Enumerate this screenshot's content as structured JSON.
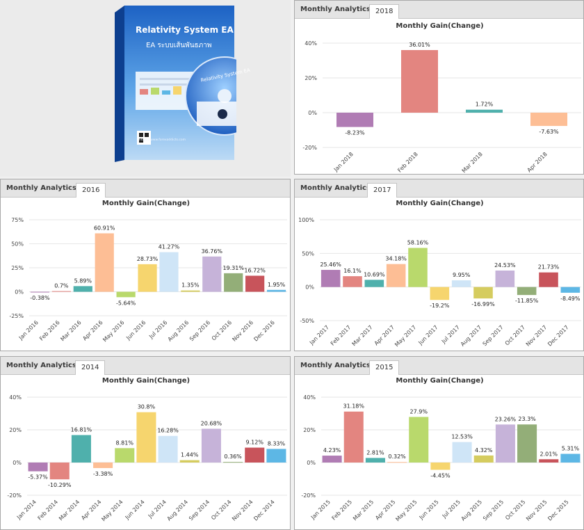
{
  "product": {
    "title": "Relativity System EA",
    "subtitle": "EA ระบบเส้นพันธภาพ",
    "disc_title": "Relativity System EA",
    "url": "https://www.forexaddicts.com"
  },
  "colors": {
    "palette": [
      "#b07cb4",
      "#e38580",
      "#4fb0ac",
      "#fdbe95",
      "#b9d96c",
      "#f6d56e",
      "#cfe5f7",
      "#d5cc5f",
      "#c6b3d9",
      "#93ae78",
      "#c8545b",
      "#5db7e5"
    ]
  },
  "panels": [
    {
      "tab_title": "Monthly Analytics",
      "year": "2018",
      "chart_data": {
        "type": "bar",
        "title": "Monthly Gain(Change)",
        "categories": [
          "Jan 2018",
          "Feb 2018",
          "Mar 2018",
          "Apr 2018"
        ],
        "values": [
          -8.23,
          36.01,
          1.72,
          -7.63
        ],
        "value_labels": [
          "-8.23%",
          "36.01%",
          "1.72%",
          "-7.63%"
        ],
        "ylim": [
          -20,
          40
        ],
        "yticks": [
          "40%",
          "20%",
          "0%",
          "-20%"
        ],
        "ytick_values": [
          40,
          20,
          0,
          -20
        ],
        "colors": [
          "#b07cb4",
          "#e38580",
          "#4fb0ac",
          "#fdbe95"
        ],
        "grid": true
      }
    },
    {
      "tab_title": "Monthly Analytics",
      "year": "2016",
      "chart_data": {
        "type": "bar",
        "title": "Monthly Gain(Change)",
        "categories": [
          "Jan 2016",
          "Feb 2016",
          "Mar 2016",
          "Apr 2016",
          "May 2016",
          "Jun 2016",
          "Jul 2016",
          "Aug 2016",
          "Sep 2016",
          "Oct 2016",
          "Nov 2016",
          "Dec 2016"
        ],
        "values": [
          -0.38,
          0.7,
          5.89,
          60.91,
          -5.64,
          28.73,
          41.27,
          1.35,
          36.76,
          19.31,
          16.72,
          1.95
        ],
        "value_labels": [
          "-0.38%",
          "0.7%",
          "5.89%",
          "60.91%",
          "-5.64%",
          "28.73%",
          "41.27%",
          "1.35%",
          "36.76%",
          "19.31%",
          "16.72%",
          "1.95%"
        ],
        "ylim": [
          -25,
          75
        ],
        "yticks": [
          "75%",
          "50%",
          "25%",
          "0%",
          "-25%"
        ],
        "ytick_values": [
          75,
          50,
          25,
          0,
          -25
        ],
        "colors": [
          "#b07cb4",
          "#e38580",
          "#4fb0ac",
          "#fdbe95",
          "#b9d96c",
          "#f6d56e",
          "#cfe5f7",
          "#d5cc5f",
          "#c6b3d9",
          "#93ae78",
          "#c8545b",
          "#5db7e5"
        ],
        "grid": true
      }
    },
    {
      "tab_title": "Monthly Analytics",
      "year": "2017",
      "chart_data": {
        "type": "bar",
        "title": "Monthly Gain(Change)",
        "categories": [
          "Jan 2017",
          "Feb 2017",
          "Mar 2017",
          "Apr 2017",
          "May 2017",
          "Jun 2017",
          "Jul 2017",
          "Aug 2017",
          "Sep 2017",
          "Oct 2017",
          "Nov 2017",
          "Dec 2017"
        ],
        "values": [
          25.46,
          16.1,
          10.69,
          34.18,
          58.16,
          -19.2,
          9.95,
          -16.99,
          24.53,
          -11.85,
          21.73,
          -8.49
        ],
        "value_labels": [
          "25.46%",
          "16.1%",
          "10.69%",
          "34.18%",
          "58.16%",
          "-19.2%",
          "9.95%",
          "-16.99%",
          "24.53%",
          "-11.85%",
          "21.73%",
          "-8.49%"
        ],
        "ylim": [
          -50,
          100
        ],
        "yticks": [
          "100%",
          "50%",
          "0%",
          "-50%"
        ],
        "ytick_values": [
          100,
          50,
          0,
          -50
        ],
        "colors": [
          "#b07cb4",
          "#e38580",
          "#4fb0ac",
          "#fdbe95",
          "#b9d96c",
          "#f6d56e",
          "#cfe5f7",
          "#d5cc5f",
          "#c6b3d9",
          "#93ae78",
          "#c8545b",
          "#5db7e5"
        ],
        "grid": true
      }
    },
    {
      "tab_title": "Monthly Analytics",
      "year": "2014",
      "chart_data": {
        "type": "bar",
        "title": "Monthly Gain(Change)",
        "categories": [
          "Jan 2014",
          "Feb 2014",
          "Mar 2014",
          "Apr 2014",
          "May 2014",
          "Jun 2014",
          "Jul 2014",
          "Aug 2014",
          "Sep 2014",
          "Oct 2014",
          "Nov 2014",
          "Dec 2014"
        ],
        "values": [
          -5.37,
          -10.29,
          16.81,
          -3.38,
          8.81,
          30.8,
          16.28,
          1.44,
          20.68,
          0.36,
          9.12,
          8.33
        ],
        "value_labels": [
          "-5.37%",
          "-10.29%",
          "16.81%",
          "-3.38%",
          "8.81%",
          "30.8%",
          "16.28%",
          "1.44%",
          "20.68%",
          "0.36%",
          "9.12%",
          "8.33%"
        ],
        "ylim": [
          -20,
          40
        ],
        "yticks": [
          "40%",
          "20%",
          "0%",
          "-20%"
        ],
        "ytick_values": [
          40,
          20,
          0,
          -20
        ],
        "colors": [
          "#b07cb4",
          "#e38580",
          "#4fb0ac",
          "#fdbe95",
          "#b9d96c",
          "#f6d56e",
          "#cfe5f7",
          "#d5cc5f",
          "#c6b3d9",
          "#93ae78",
          "#c8545b",
          "#5db7e5"
        ],
        "grid": true
      }
    },
    {
      "tab_title": "Monthly Analytics",
      "year": "2015",
      "chart_data": {
        "type": "bar",
        "title": "Monthly Gain(Change)",
        "categories": [
          "Jan 2015",
          "Feb 2015",
          "Mar 2015",
          "Apr 2015",
          "May 2015",
          "Jun 2015",
          "Jul 2015",
          "Aug 2015",
          "Sep 2015",
          "Oct 2015",
          "Nov 2015",
          "Dec 2015"
        ],
        "values": [
          4.23,
          31.18,
          2.81,
          0.32,
          27.9,
          -4.45,
          12.53,
          4.32,
          23.26,
          23.3,
          2.01,
          5.31
        ],
        "value_labels": [
          "4.23%",
          "31.18%",
          "2.81%",
          "0.32%",
          "27.9%",
          "-4.45%",
          "12.53%",
          "4.32%",
          "23.26%",
          "23.3%",
          "2.01%",
          "5.31%"
        ],
        "ylim": [
          -20,
          40
        ],
        "yticks": [
          "40%",
          "20%",
          "0%",
          "-20%"
        ],
        "ytick_values": [
          40,
          20,
          0,
          -20
        ],
        "colors": [
          "#b07cb4",
          "#e38580",
          "#4fb0ac",
          "#fdbe95",
          "#b9d96c",
          "#f6d56e",
          "#cfe5f7",
          "#d5cc5f",
          "#c6b3d9",
          "#93ae78",
          "#c8545b",
          "#5db7e5"
        ],
        "grid": true
      }
    }
  ]
}
